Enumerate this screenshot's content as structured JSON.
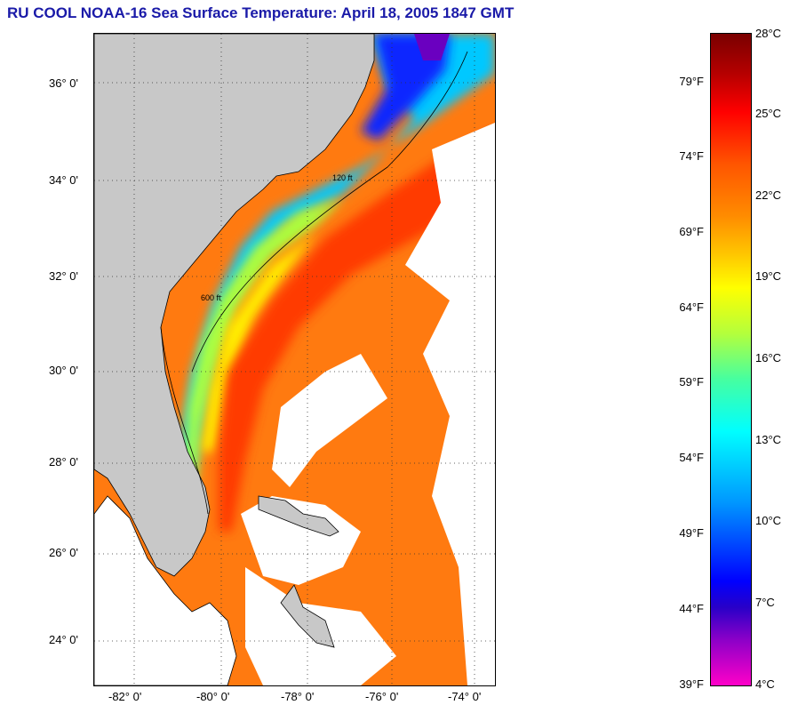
{
  "title": "RU COOL  NOAA-16  Sea Surface Temperature:  April 18, 2005 1847 GMT",
  "map": {
    "lat_labels": [
      "36° 0'",
      "34° 0'",
      "32° 0'",
      "30° 0'",
      "28° 0'",
      "26° 0'",
      "24° 0'"
    ],
    "lon_labels": [
      "-82° 0'",
      "-80° 0'",
      "-78° 0'",
      "-76° 0'",
      "-74° 0'"
    ],
    "contour_labels": [
      "120 ft",
      "600 ft"
    ],
    "colors": {
      "land": "#c8c8c8",
      "cloud": "#ffffff",
      "coast": "#000000"
    }
  },
  "colorbar": {
    "fahrenheit": [
      "79°F",
      "74°F",
      "69°F",
      "64°F",
      "59°F",
      "54°F",
      "49°F",
      "44°F",
      "39°F"
    ],
    "celsius": [
      "28°C",
      "25°C",
      "22°C",
      "19°C",
      "16°C",
      "13°C",
      "10°C",
      "7°C",
      "4°C"
    ]
  }
}
